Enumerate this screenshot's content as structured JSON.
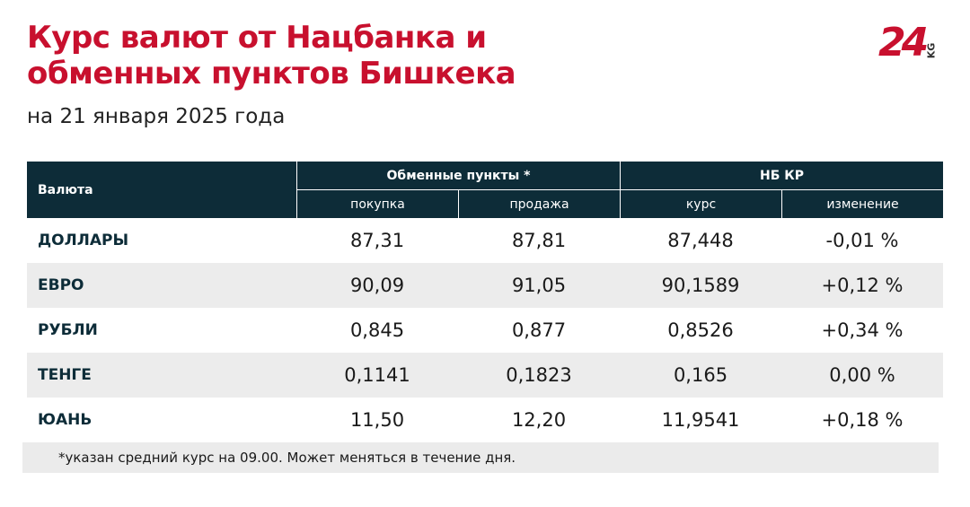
{
  "header": {
    "title_line1": "Курс валют от Нацбанка и",
    "title_line2": "обменных пунктов Бишкека",
    "subtitle": "на 21 января 2025 года",
    "logo": "24",
    "logo_suffix": "KG"
  },
  "table": {
    "group_headers": [
      "Валюта",
      "Обменные пункты *",
      "НБ КР"
    ],
    "sub_headers": [
      "покупка",
      "продажа",
      "курс",
      "изменение"
    ],
    "rows": [
      [
        "ДОЛЛАРЫ",
        "87,31",
        "87,81",
        "87,448",
        "-0,01 %"
      ],
      [
        "ЕВРО",
        "90,09",
        "91,05",
        "90,1589",
        "+0,12 %"
      ],
      [
        "РУБЛИ",
        "0,845",
        "0,877",
        "0,8526",
        "+0,34 %"
      ],
      [
        "ТЕНГЕ",
        "0,1141",
        "0,1823",
        "0,165",
        "0,00 %"
      ],
      [
        "ЮАНЬ",
        "11,50",
        "12,20",
        "11,9541",
        "+0,18 %"
      ]
    ]
  },
  "footnote": "*указан средний курс на 09.00. Может меняться в течение дня."
}
